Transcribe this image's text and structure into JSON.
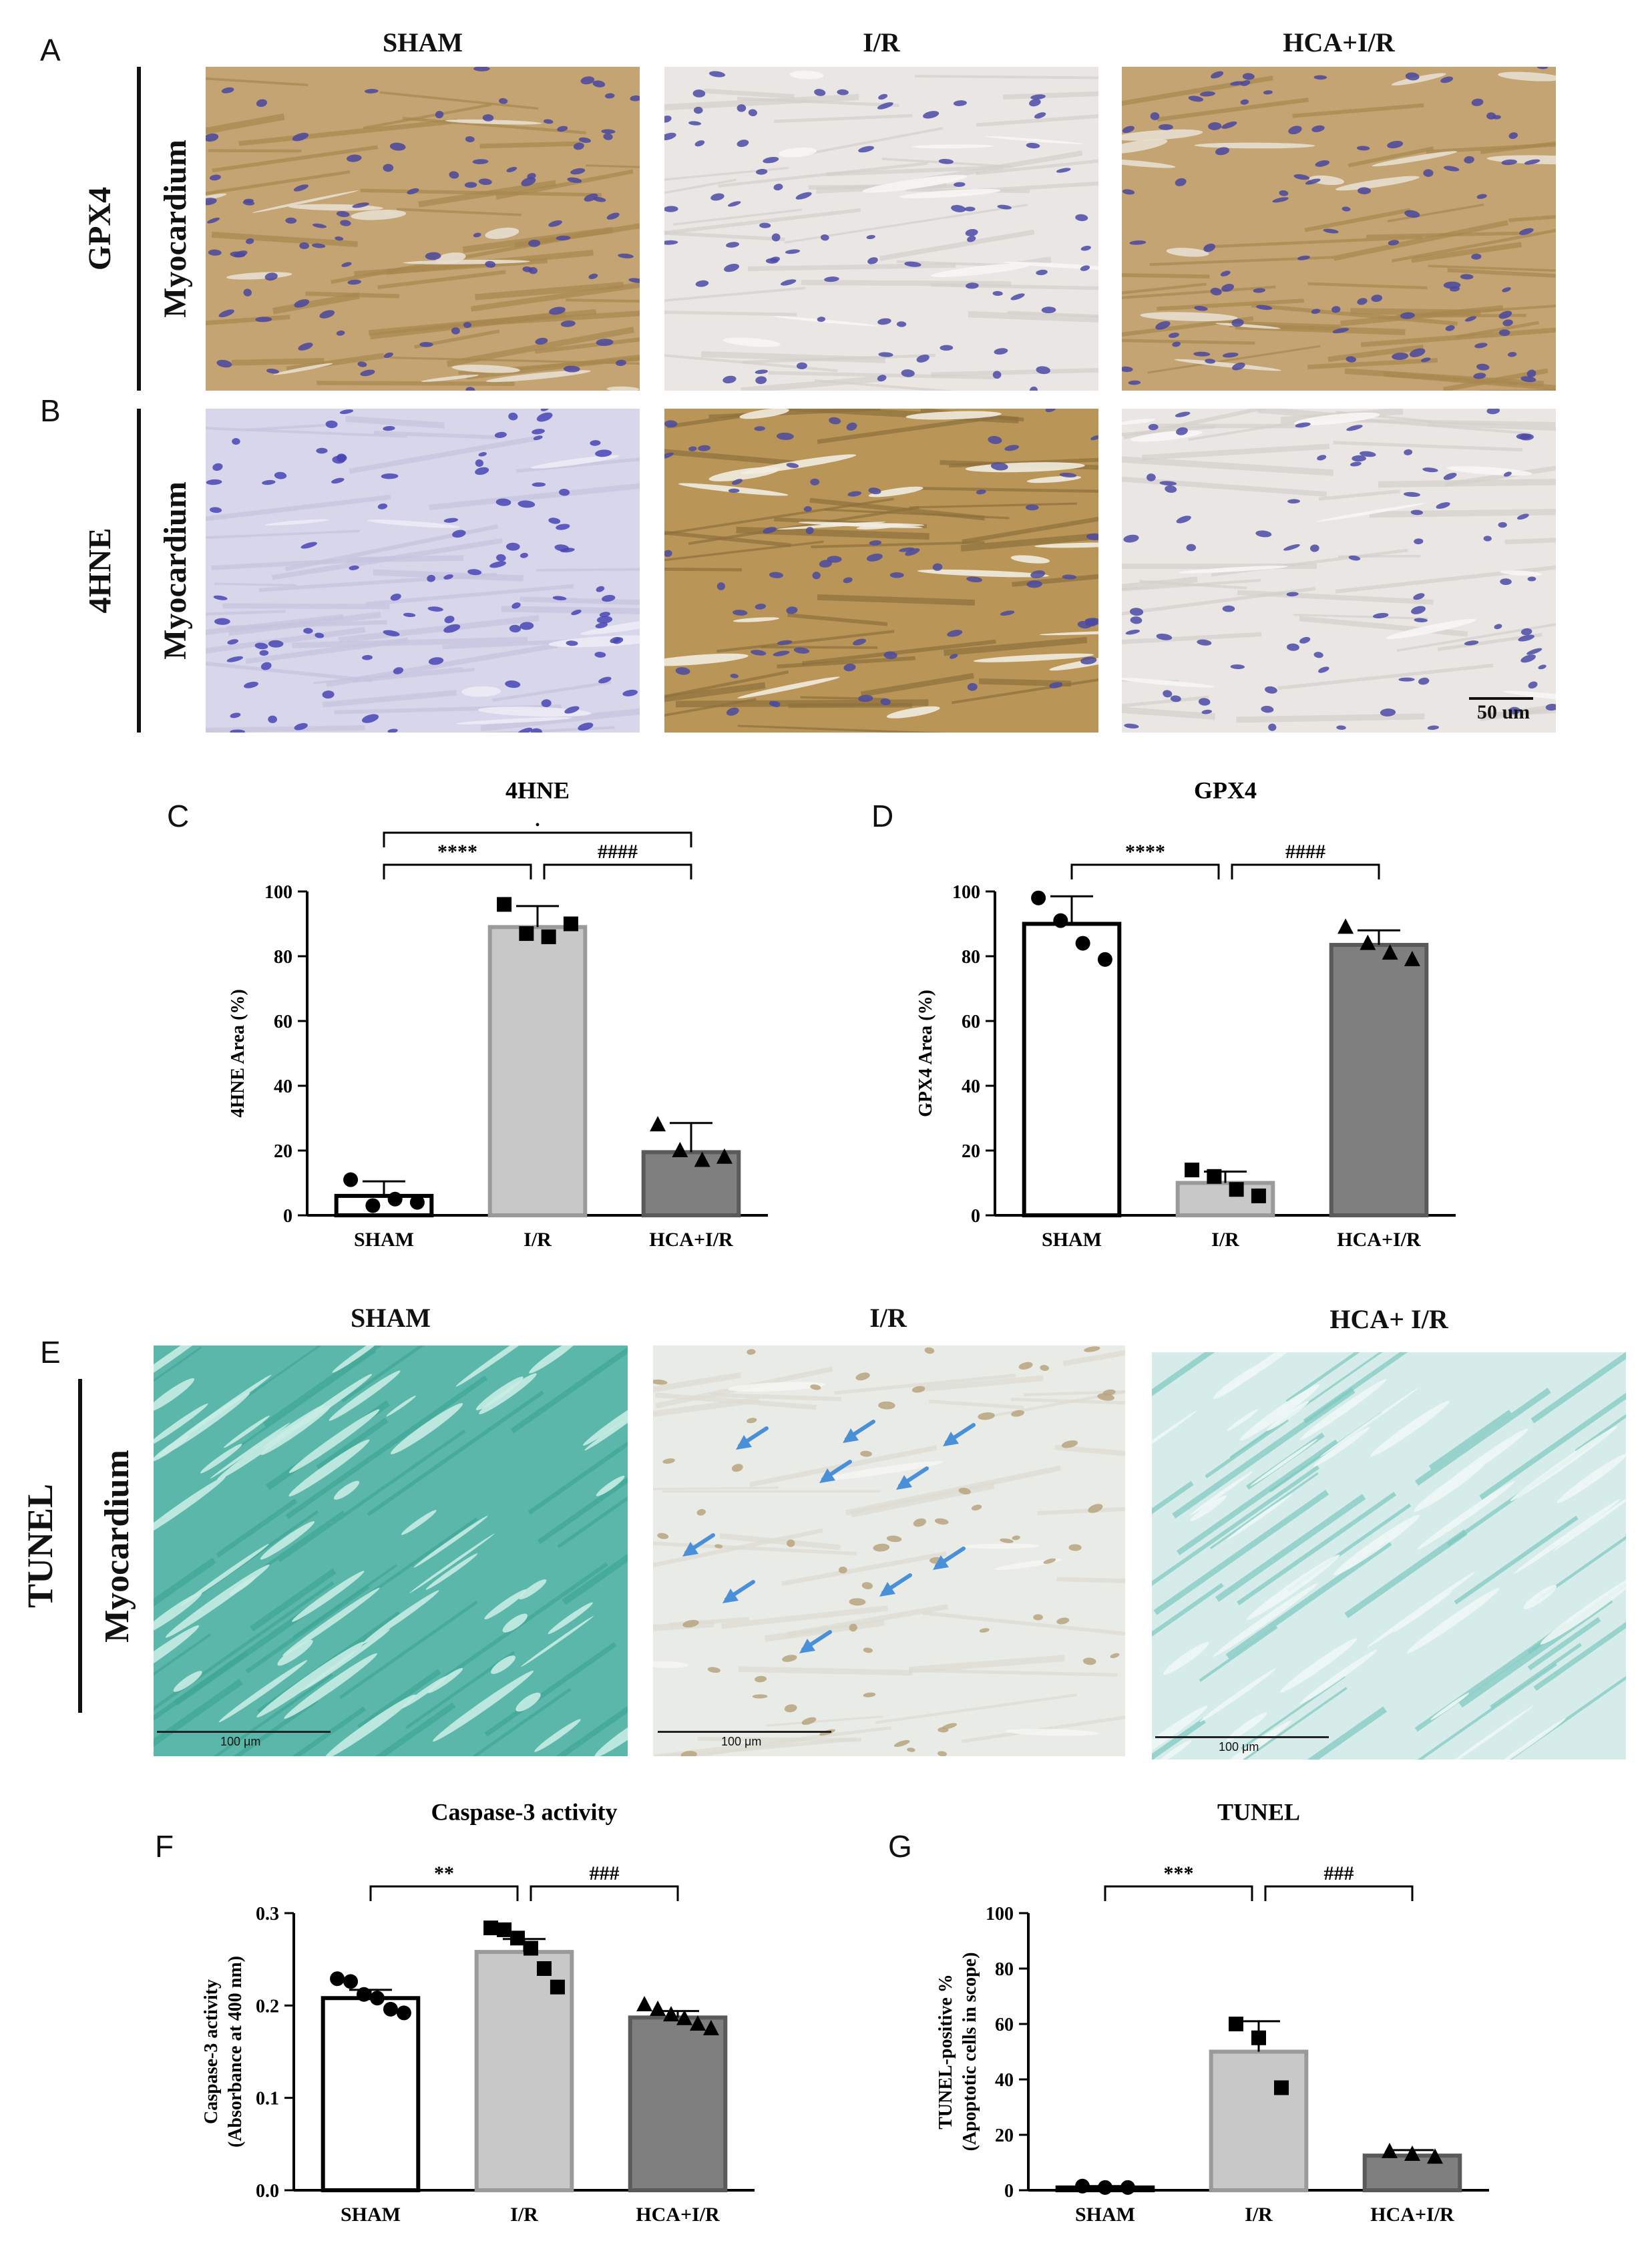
{
  "panel_letters": {
    "A": "A",
    "B": "B",
    "C": "C",
    "D": "D",
    "E": "E",
    "F": "F",
    "G": "G"
  },
  "ihc": {
    "columns": [
      "SHAM",
      "I/R",
      "HCA+I/R"
    ],
    "rows": [
      {
        "marker": "GPX4",
        "tissue": "Myocardium"
      },
      {
        "marker": "4HNE",
        "tissue": "Myocardium"
      }
    ],
    "scale_bar_text": "50 um"
  },
  "tunel_images": {
    "columns": [
      "SHAM",
      "I/R",
      "HCA+ I/R"
    ],
    "marker": "TUNEL",
    "tissue": "Myocardium",
    "scale_bar_text": "100 μm"
  },
  "colors": {
    "brown_stain": "#b89a63",
    "light_stain": "#d9d6e6",
    "nucleus": "#4b4aa8",
    "tunel_green": "#5ab8ac",
    "bar_sham": "#ffffff",
    "bar_ir": "#c8c8c8",
    "bar_hca": "#7f7f7f",
    "arrow_blue": "#4a90d9"
  },
  "chart_data": [
    {
      "id": "C",
      "type": "bar",
      "title": "4HNE",
      "categories": [
        "SHAM",
        "I/R",
        "HCA+I/R"
      ],
      "values": [
        6,
        89,
        19.5
      ],
      "errors": [
        4.5,
        6.5,
        9
      ],
      "points": [
        [
          11,
          3,
          5,
          4
        ],
        [
          96,
          87,
          86,
          90
        ],
        [
          28,
          20,
          17,
          18
        ]
      ],
      "markers": [
        "circle",
        "square",
        "triangle"
      ],
      "ylabel": "4HNE Area (%)",
      "ylim": [
        0,
        100
      ],
      "yticks": [
        "0",
        "20",
        "40",
        "60",
        "80",
        "100"
      ],
      "ytick_values": [
        0,
        20,
        40,
        60,
        80,
        100
      ],
      "brackets": [
        {
          "from": 0,
          "to": 1,
          "label": "****",
          "level": 0
        },
        {
          "from": 1,
          "to": 2,
          "label": "####",
          "level": 0
        },
        {
          "from": 0,
          "to": 2,
          "label": ".",
          "level": 1
        }
      ]
    },
    {
      "id": "D",
      "type": "bar",
      "title": "GPX4",
      "categories": [
        "SHAM",
        "I/R",
        "HCA+I/R"
      ],
      "values": [
        90,
        10,
        83.5
      ],
      "errors": [
        8.5,
        3.5,
        4.5
      ],
      "points": [
        [
          98,
          91,
          84,
          79
        ],
        [
          14,
          12,
          8,
          6
        ],
        [
          89,
          84,
          81,
          79
        ]
      ],
      "markers": [
        "circle",
        "square",
        "triangle"
      ],
      "ylabel": "GPX4 Area (%)",
      "ylim": [
        0,
        100
      ],
      "yticks": [
        "0",
        "20",
        "40",
        "60",
        "80",
        "100"
      ],
      "ytick_values": [
        0,
        20,
        40,
        60,
        80,
        100
      ],
      "brackets": [
        {
          "from": 0,
          "to": 1,
          "label": "****",
          "level": 0
        },
        {
          "from": 1,
          "to": 2,
          "label": "####",
          "level": 0
        }
      ]
    },
    {
      "id": "F",
      "type": "bar",
      "title": "Caspase-3 activity",
      "categories": [
        "SHAM",
        "I/R",
        "HCA+I/R"
      ],
      "values": [
        0.208,
        0.258,
        0.187
      ],
      "errors": [
        0.009,
        0.014,
        0.007
      ],
      "points": [
        [
          0.229,
          0.226,
          0.212,
          0.208,
          0.196,
          0.192
        ],
        [
          0.284,
          0.282,
          0.273,
          0.262,
          0.24,
          0.22
        ],
        [
          0.201,
          0.196,
          0.19,
          0.186,
          0.18,
          0.175
        ]
      ],
      "markers": [
        "circle",
        "square",
        "triangle"
      ],
      "ylabel": [
        "Caspase-3 activity",
        "(Absorbance at 400 nm)"
      ],
      "ylim": [
        0,
        0.3
      ],
      "yticks": [
        "0.0",
        "0.1",
        "0.2",
        "0.3"
      ],
      "ytick_values": [
        0,
        0.1,
        0.2,
        0.3
      ],
      "brackets": [
        {
          "from": 0,
          "to": 1,
          "label": "**",
          "level": 0
        },
        {
          "from": 1,
          "to": 2,
          "label": "###",
          "level": 0
        }
      ]
    },
    {
      "id": "G",
      "type": "bar",
      "title": "TUNEL",
      "categories": [
        "SHAM",
        "I/R",
        "HCA+I/R"
      ],
      "values": [
        1,
        50,
        12.5
      ],
      "errors": [
        0.5,
        11,
        2
      ],
      "points": [
        [
          1.5,
          1,
          1
        ],
        [
          60,
          55,
          37
        ],
        [
          14,
          13,
          12
        ]
      ],
      "markers": [
        "circle",
        "square",
        "triangle"
      ],
      "ylabel": [
        "TUNEL-positive %",
        "(Apoptotic cells in scope)"
      ],
      "ylim": [
        0,
        100
      ],
      "yticks": [
        "0",
        "20",
        "40",
        "60",
        "80",
        "100"
      ],
      "ytick_values": [
        0,
        20,
        40,
        60,
        80,
        100
      ],
      "brackets": [
        {
          "from": 0,
          "to": 1,
          "label": "***",
          "level": 0
        },
        {
          "from": 1,
          "to": 2,
          "label": "###",
          "level": 0
        }
      ]
    }
  ]
}
